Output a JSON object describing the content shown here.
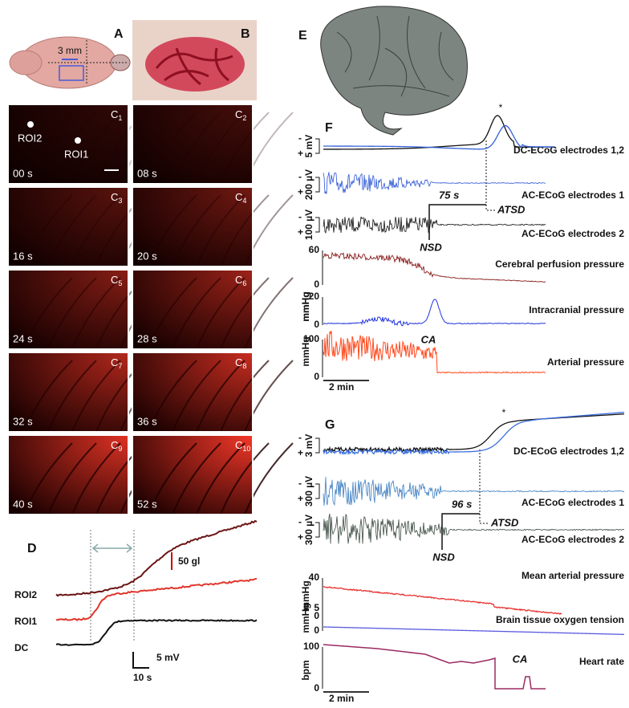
{
  "A": {
    "label": "A",
    "scale": "3 mm"
  },
  "B": {
    "label": "B"
  },
  "C": {
    "letter": "C",
    "frames": [
      {
        "index": "1",
        "time": "00 s"
      },
      {
        "index": "2",
        "time": "08 s"
      },
      {
        "index": "3",
        "time": "16 s"
      },
      {
        "index": "4",
        "time": "20 s"
      },
      {
        "index": "5",
        "time": "24 s"
      },
      {
        "index": "6",
        "time": "28 s"
      },
      {
        "index": "7",
        "time": "32 s"
      },
      {
        "index": "8",
        "time": "36 s"
      },
      {
        "index": "9",
        "time": "40 s"
      },
      {
        "index": "10",
        "time": "52 s"
      }
    ],
    "rois": [
      "ROI2",
      "ROI1"
    ]
  },
  "D": {
    "label": "D",
    "scale_signal": "50 gl",
    "scale_voltage": "5 mV",
    "scale_time": "10 s",
    "traces": [
      "ROI2",
      "ROI1",
      "DC"
    ]
  },
  "E": {
    "label": "E"
  },
  "F": {
    "label": "F",
    "star": "*",
    "traces": [
      "DC-ECoG electrodes 1,2",
      "AC-ECoG electrodes 1",
      "AC-ECoG electrodes 2",
      "Cerebral perfusion pressure",
      "Intracranial pressure",
      "Arterial pressure"
    ],
    "scales": [
      "5 mV",
      "200 µV",
      "100 µV"
    ],
    "signs": [
      "-",
      "+"
    ],
    "units": [
      "mmHg",
      "mmHg",
      "mmHg"
    ],
    "ticks": [
      [
        "60",
        "0"
      ],
      [
        "20",
        "0"
      ],
      [
        "100",
        "0"
      ]
    ],
    "interval": "75 s",
    "events": [
      "NSD",
      "ATSD",
      "CA"
    ],
    "time_scale": "2 min"
  },
  "G": {
    "label": "G",
    "star": "*",
    "traces": [
      "DC-ECoG electrodes 1,2",
      "AC-ECoG electrodes 1",
      "AC-ECoG electrodes 2",
      "Mean arterial pressure",
      "Brain tissue oxygen tension",
      "Heart rate"
    ],
    "scales": [
      "3 mV",
      "300 µV",
      "300 µV"
    ],
    "signs": [
      "-",
      "+"
    ],
    "units": [
      "mmHg",
      "mmHg",
      "bpm"
    ],
    "ticks": [
      [
        "40",
        "0"
      ],
      [
        "5",
        "0"
      ],
      [
        "100",
        "0"
      ]
    ],
    "interval": "96 s",
    "events": [
      "NSD",
      "ATSD",
      "CA"
    ],
    "time_scale": "2 min"
  }
}
